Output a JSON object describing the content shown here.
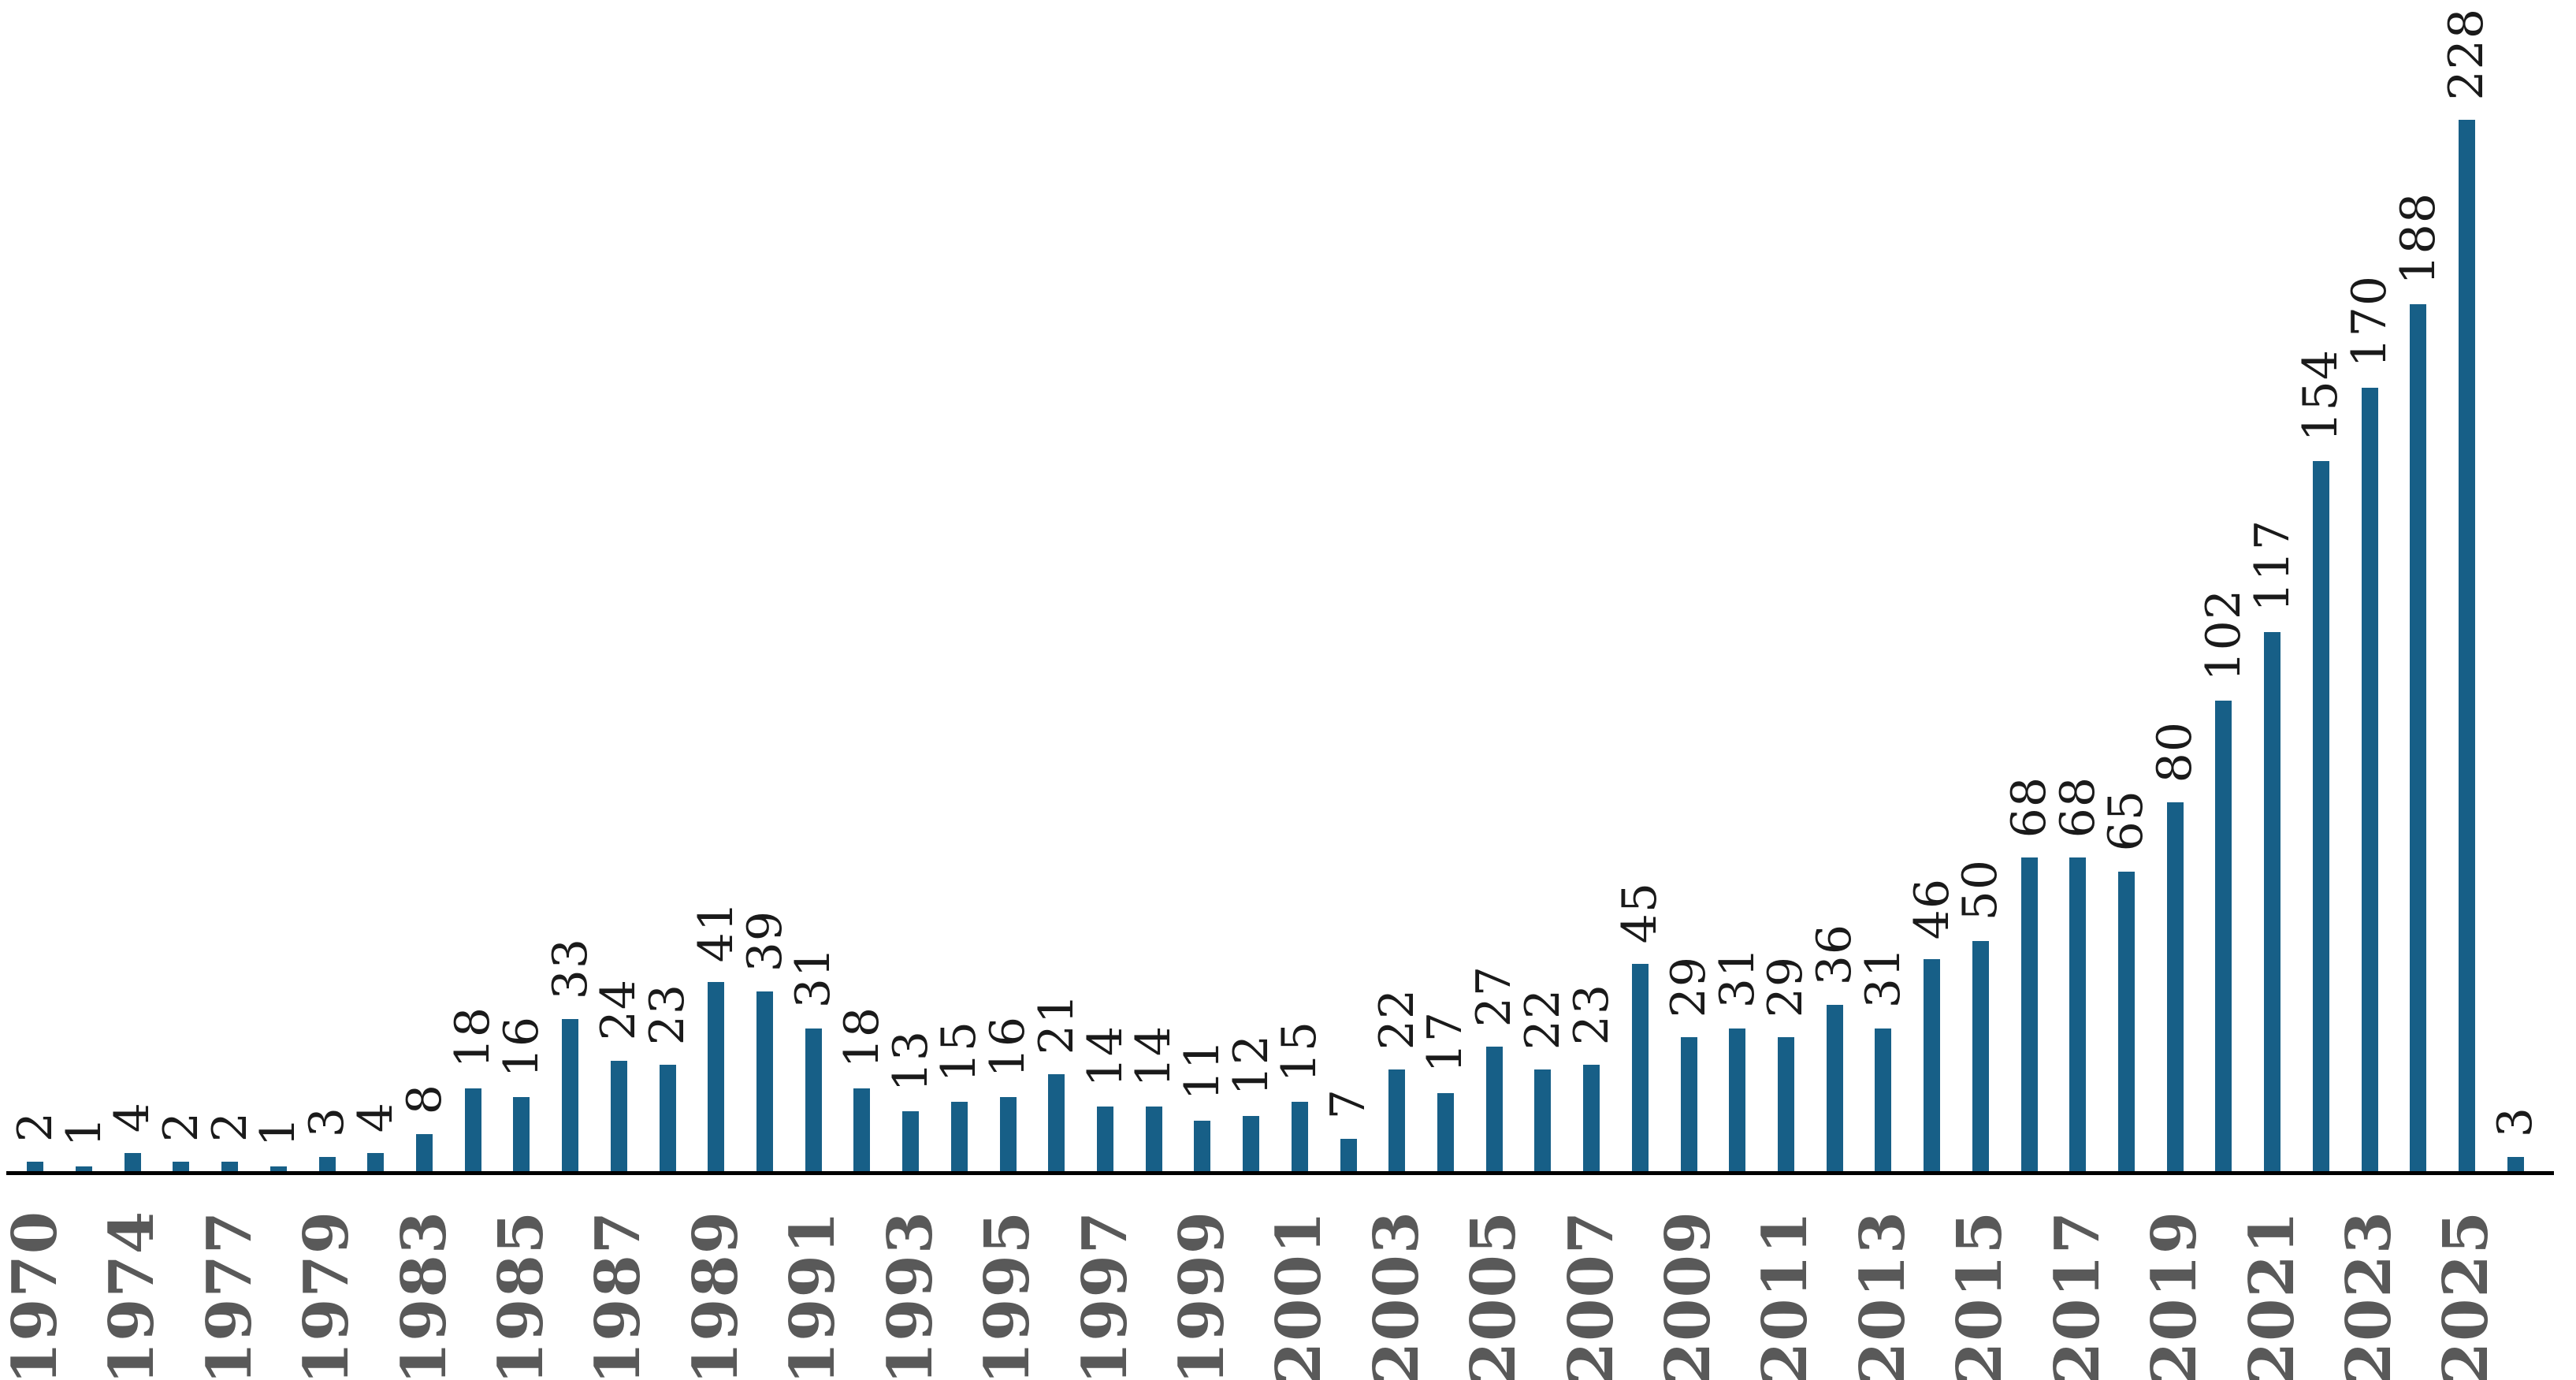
{
  "chart_data": {
    "type": "bar",
    "title": "",
    "xlabel": "",
    "ylabel": "",
    "ylim": [
      0,
      240
    ],
    "grid": false,
    "legend": false,
    "value_labels_shown": true,
    "value_label_rotation": 90,
    "tick_label_rotation": 90,
    "x_axis_note": "year labels appear under every other bar; final short bar is unlabeled",
    "x_tick_labels": [
      "1970",
      "1974",
      "1977",
      "1979",
      "1983",
      "1985",
      "1987",
      "1989",
      "1991",
      "1993",
      "1995",
      "1997",
      "1999",
      "2001",
      "2003",
      "2005",
      "2007",
      "2009",
      "2011",
      "2013",
      "2015",
      "2017",
      "2019",
      "2021",
      "2023",
      "2025"
    ],
    "bars": [
      {
        "label": "1970",
        "value": 2
      },
      {
        "label": "",
        "value": 1
      },
      {
        "label": "1974",
        "value": 4
      },
      {
        "label": "",
        "value": 2
      },
      {
        "label": "1977",
        "value": 2
      },
      {
        "label": "",
        "value": 1
      },
      {
        "label": "1979",
        "value": 3
      },
      {
        "label": "",
        "value": 4
      },
      {
        "label": "1983",
        "value": 8
      },
      {
        "label": "",
        "value": 18
      },
      {
        "label": "1985",
        "value": 16
      },
      {
        "label": "",
        "value": 33
      },
      {
        "label": "1987",
        "value": 24
      },
      {
        "label": "",
        "value": 23
      },
      {
        "label": "1989",
        "value": 41
      },
      {
        "label": "",
        "value": 39
      },
      {
        "label": "1991",
        "value": 31
      },
      {
        "label": "",
        "value": 18
      },
      {
        "label": "1993",
        "value": 13
      },
      {
        "label": "",
        "value": 15
      },
      {
        "label": "1995",
        "value": 16
      },
      {
        "label": "",
        "value": 21
      },
      {
        "label": "1997",
        "value": 14
      },
      {
        "label": "",
        "value": 14
      },
      {
        "label": "1999",
        "value": 11
      },
      {
        "label": "",
        "value": 12
      },
      {
        "label": "2001",
        "value": 15
      },
      {
        "label": "",
        "value": 7
      },
      {
        "label": "2003",
        "value": 22
      },
      {
        "label": "",
        "value": 17
      },
      {
        "label": "2005",
        "value": 27
      },
      {
        "label": "",
        "value": 22
      },
      {
        "label": "2007",
        "value": 23
      },
      {
        "label": "",
        "value": 45
      },
      {
        "label": "2009",
        "value": 29
      },
      {
        "label": "",
        "value": 31
      },
      {
        "label": "2011",
        "value": 29
      },
      {
        "label": "",
        "value": 36
      },
      {
        "label": "2013",
        "value": 31
      },
      {
        "label": "",
        "value": 46
      },
      {
        "label": "2015",
        "value": 50
      },
      {
        "label": "",
        "value": 68
      },
      {
        "label": "2017",
        "value": 68
      },
      {
        "label": "",
        "value": 65
      },
      {
        "label": "2019",
        "value": 80
      },
      {
        "label": "",
        "value": 102
      },
      {
        "label": "2021",
        "value": 117
      },
      {
        "label": "",
        "value": 154
      },
      {
        "label": "2023",
        "value": 170
      },
      {
        "label": "",
        "value": 188
      },
      {
        "label": "2025",
        "value": 228
      },
      {
        "label": "",
        "value": 3
      }
    ],
    "colors": {
      "bar": "#175F87",
      "value_label": "#1a1a1a",
      "tick_label": "#595959",
      "axis": "#000000",
      "background": "#ffffff"
    }
  }
}
